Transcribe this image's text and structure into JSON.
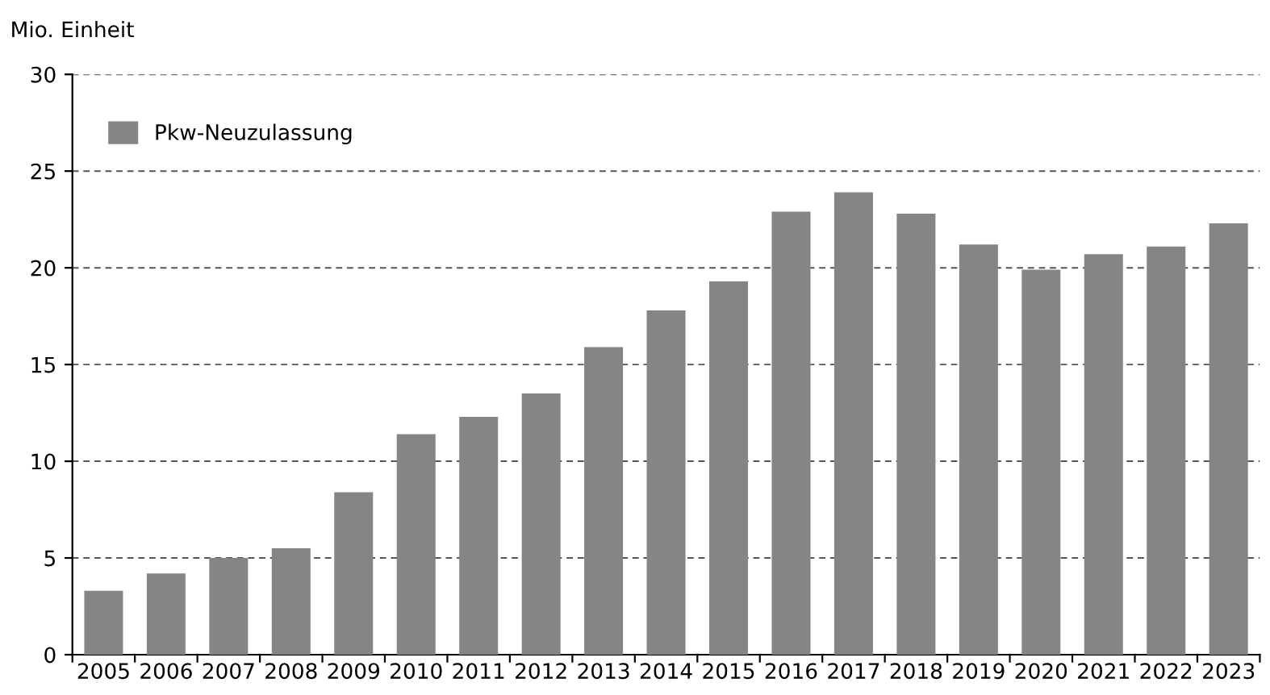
{
  "chart_data": {
    "type": "bar",
    "ylabel": "Mio. Einheit",
    "categories": [
      "2005",
      "2006",
      "2007",
      "2008",
      "2009",
      "2010",
      "2011",
      "2012",
      "2013",
      "2014",
      "2015",
      "2016",
      "2017",
      "2018",
      "2019",
      "2020",
      "2021",
      "2022",
      "2023"
    ],
    "series": [
      {
        "name": "Pkw-Neuzulassung",
        "color": "#858585",
        "values": [
          3.3,
          4.2,
          5.0,
          5.5,
          8.4,
          11.4,
          12.3,
          13.5,
          15.9,
          17.8,
          19.3,
          22.9,
          23.9,
          22.8,
          21.2,
          19.9,
          20.7,
          21.1,
          22.3
        ]
      }
    ],
    "ylim": [
      0,
      30
    ],
    "yticks": [
      0,
      5,
      10,
      15,
      20,
      25,
      30
    ],
    "grid": "y",
    "legend": "top left"
  }
}
